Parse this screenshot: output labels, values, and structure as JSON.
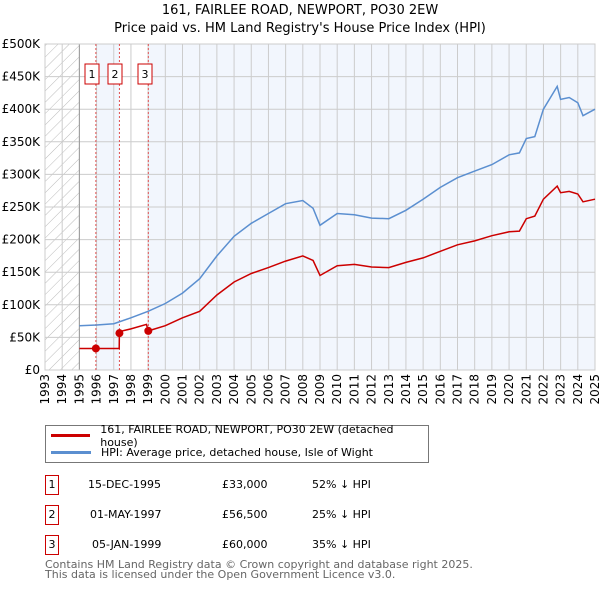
{
  "chart_data": {
    "type": "line",
    "title": "161, FAIRLEE ROAD, NEWPORT, PO30 2EW",
    "subtitle": "Price paid vs. HM Land Registry's House Price Index (HPI)",
    "xlim": [
      1993,
      2025
    ],
    "ylim": [
      0,
      500000
    ],
    "x_ticks": [
      "1993",
      "1994",
      "1995",
      "1996",
      "1997",
      "1998",
      "1999",
      "2000",
      "2001",
      "2002",
      "2003",
      "2004",
      "2005",
      "2006",
      "2007",
      "2008",
      "2009",
      "2010",
      "2011",
      "2012",
      "2013",
      "2014",
      "2015",
      "2016",
      "2017",
      "2018",
      "2019",
      "2020",
      "2021",
      "2022",
      "2023",
      "2024",
      "2025"
    ],
    "y_ticks": [
      0,
      50000,
      100000,
      150000,
      200000,
      250000,
      300000,
      350000,
      400000,
      450000,
      500000
    ],
    "y_tick_labels": [
      "£0",
      "£50K",
      "£100K",
      "£150K",
      "£200K",
      "£250K",
      "£300K",
      "£350K",
      "£400K",
      "£450K",
      "£500K"
    ],
    "grid": true,
    "hatched_range": [
      1993,
      1995
    ],
    "series": [
      {
        "name": "161, FAIRLEE ROAD, NEWPORT, PO30 2EW (detached house)",
        "color": "#cc0000",
        "x": [
          1995,
          1995.96,
          1997.32,
          1997.33,
          1997.5,
          1998,
          1998.9,
          1999.01,
          2000,
          2001,
          2002,
          2003,
          2004,
          2005,
          2006,
          2007,
          2008,
          2008.6,
          2009,
          2010,
          2011,
          2012,
          2013,
          2014,
          2015,
          2016,
          2017,
          2018,
          2019,
          2020,
          2020.6,
          2021,
          2021.5,
          2022,
          2022.8,
          2023,
          2023.5,
          2024,
          2024.3,
          2025
        ],
        "y": [
          33000,
          33000,
          33000,
          56500,
          60000,
          63000,
          70000,
          60000,
          68000,
          80000,
          90000,
          115000,
          135000,
          148000,
          157000,
          167000,
          175000,
          168000,
          145000,
          160000,
          162000,
          158000,
          157000,
          165000,
          172000,
          182000,
          192000,
          198000,
          206000,
          212000,
          213000,
          232000,
          236000,
          262000,
          282000,
          272000,
          274000,
          270000,
          258000,
          262000
        ]
      },
      {
        "name": "HPI: Average price, detached house, Isle of Wight",
        "color": "#5b8fd0",
        "x": [
          1995,
          1996,
          1997,
          1998,
          1999,
          2000,
          2001,
          2002,
          2003,
          2004,
          2005,
          2006,
          2007,
          2008,
          2008.6,
          2009,
          2010,
          2011,
          2012,
          2013,
          2014,
          2015,
          2016,
          2017,
          2018,
          2019,
          2020,
          2020.6,
          2021,
          2021.5,
          2022,
          2022.8,
          2023,
          2023.5,
          2024,
          2024.3,
          2025
        ],
        "y": [
          68000,
          69000,
          71000,
          80000,
          90000,
          102000,
          118000,
          140000,
          175000,
          205000,
          225000,
          240000,
          255000,
          260000,
          248000,
          222000,
          240000,
          238000,
          233000,
          232000,
          245000,
          262000,
          280000,
          295000,
          305000,
          315000,
          330000,
          333000,
          355000,
          358000,
          400000,
          435000,
          415000,
          418000,
          410000,
          390000,
          400000
        ]
      }
    ],
    "sales": [
      {
        "label": "1",
        "x": 1995.96,
        "y": 33000
      },
      {
        "label": "2",
        "x": 1997.33,
        "y": 56500
      },
      {
        "label": "3",
        "x": 1999.01,
        "y": 60000
      }
    ]
  },
  "legend": {
    "property": "161, FAIRLEE ROAD, NEWPORT, PO30 2EW (detached house)",
    "hpi": "HPI: Average price, detached house, Isle of Wight"
  },
  "transactions": [
    {
      "num": "1",
      "date": "15-DEC-1995",
      "price": "£33,000",
      "hpi": "52% ↓ HPI"
    },
    {
      "num": "2",
      "date": "01-MAY-1997",
      "price": "£56,500",
      "hpi": "25% ↓ HPI"
    },
    {
      "num": "3",
      "date": "05-JAN-1999",
      "price": "£60,000",
      "hpi": "35% ↓ HPI"
    }
  ],
  "footer": {
    "line1": "Contains HM Land Registry data © Crown copyright and database right 2025.",
    "line2": "This data is licensed under the Open Government Licence v3.0."
  }
}
